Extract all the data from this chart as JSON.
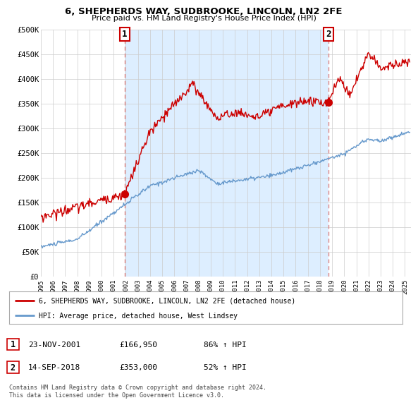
{
  "title": "6, SHEPHERDS WAY, SUDBROOKE, LINCOLN, LN2 2FE",
  "subtitle": "Price paid vs. HM Land Registry's House Price Index (HPI)",
  "ylabel_ticks": [
    "£0",
    "£50K",
    "£100K",
    "£150K",
    "£200K",
    "£250K",
    "£300K",
    "£350K",
    "£400K",
    "£450K",
    "£500K"
  ],
  "ytick_values": [
    0,
    50000,
    100000,
    150000,
    200000,
    250000,
    300000,
    350000,
    400000,
    450000,
    500000
  ],
  "ylim": [
    0,
    500000
  ],
  "xlim_start": 1995.0,
  "xlim_end": 2025.5,
  "marker1_x": 2001.9,
  "marker1_y": 166950,
  "marker1_label": "1",
  "marker1_date": "23-NOV-2001",
  "marker1_price": "£166,950",
  "marker1_hpi": "86% ↑ HPI",
  "marker2_x": 2018.71,
  "marker2_y": 353000,
  "marker2_label": "2",
  "marker2_date": "14-SEP-2018",
  "marker2_price": "£353,000",
  "marker2_hpi": "52% ↑ HPI",
  "line1_color": "#cc0000",
  "line2_color": "#6699cc",
  "marker_color": "#cc0000",
  "vline_color": "#dd8888",
  "shade_color": "#ddeeff",
  "legend1_label": "6, SHEPHERDS WAY, SUDBROOKE, LINCOLN, LN2 2FE (detached house)",
  "legend2_label": "HPI: Average price, detached house, West Lindsey",
  "footer": "Contains HM Land Registry data © Crown copyright and database right 2024.\nThis data is licensed under the Open Government Licence v3.0.",
  "background_color": "#ffffff",
  "grid_color": "#cccccc"
}
